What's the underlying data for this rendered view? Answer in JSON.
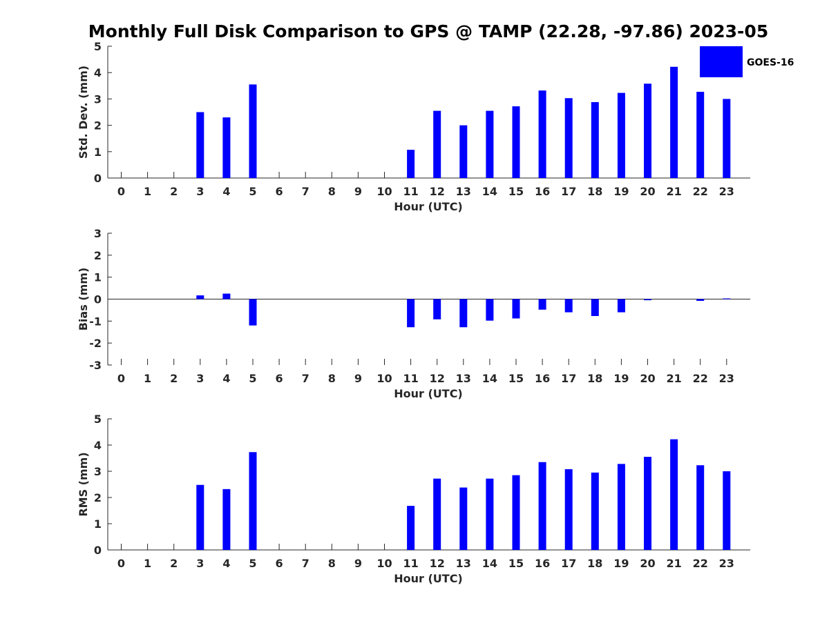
{
  "title": "Monthly Full Disk Comparison to GPS @ TAMP (22.28, -97.86) 2023-05",
  "legend": {
    "label": "GOES-16",
    "color": "#0000ff",
    "placement": "top-right"
  },
  "chart_data": [
    {
      "type": "bar",
      "xlabel": "Hour (UTC)",
      "ylabel": "Std. Dev. (mm)",
      "ylim": [
        0,
        5
      ],
      "yticks": [
        0,
        1,
        2,
        3,
        4,
        5
      ],
      "categories": [
        "0",
        "1",
        "2",
        "3",
        "4",
        "5",
        "6",
        "7",
        "8",
        "9",
        "10",
        "11",
        "12",
        "13",
        "14",
        "15",
        "16",
        "17",
        "18",
        "19",
        "20",
        "21",
        "22",
        "23"
      ],
      "series": [
        {
          "name": "GOES-16",
          "values": [
            null,
            null,
            null,
            2.5,
            2.3,
            3.55,
            null,
            null,
            null,
            null,
            null,
            1.07,
            2.55,
            2.0,
            2.55,
            2.72,
            3.32,
            3.03,
            2.88,
            3.23,
            3.58,
            4.22,
            3.27,
            3.0
          ]
        }
      ]
    },
    {
      "type": "bar",
      "xlabel": "Hour (UTC)",
      "ylabel": "Bias (mm)",
      "ylim": [
        -3,
        3
      ],
      "yticks": [
        -3,
        -2,
        -1,
        0,
        1,
        2,
        3
      ],
      "categories": [
        "0",
        "1",
        "2",
        "3",
        "4",
        "5",
        "6",
        "7",
        "8",
        "9",
        "10",
        "11",
        "12",
        "13",
        "14",
        "15",
        "16",
        "17",
        "18",
        "19",
        "20",
        "21",
        "22",
        "23"
      ],
      "series": [
        {
          "name": "GOES-16",
          "values": [
            null,
            null,
            null,
            0.17,
            0.25,
            -1.2,
            null,
            null,
            null,
            null,
            null,
            -1.28,
            -0.92,
            -1.28,
            -0.98,
            -0.88,
            -0.48,
            -0.6,
            -0.77,
            -0.6,
            -0.05,
            0.0,
            -0.08,
            0.03
          ]
        }
      ]
    },
    {
      "type": "bar",
      "xlabel": "Hour (UTC)",
      "ylabel": "RMS (mm)",
      "ylim": [
        0,
        5
      ],
      "yticks": [
        0,
        1,
        2,
        3,
        4,
        5
      ],
      "categories": [
        "0",
        "1",
        "2",
        "3",
        "4",
        "5",
        "6",
        "7",
        "8",
        "9",
        "10",
        "11",
        "12",
        "13",
        "14",
        "15",
        "16",
        "17",
        "18",
        "19",
        "20",
        "21",
        "22",
        "23"
      ],
      "series": [
        {
          "name": "GOES-16",
          "values": [
            null,
            null,
            null,
            2.48,
            2.32,
            3.73,
            null,
            null,
            null,
            null,
            null,
            1.68,
            2.72,
            2.38,
            2.72,
            2.85,
            3.35,
            3.08,
            2.95,
            3.28,
            3.55,
            4.22,
            3.23,
            3.0
          ]
        }
      ]
    }
  ]
}
